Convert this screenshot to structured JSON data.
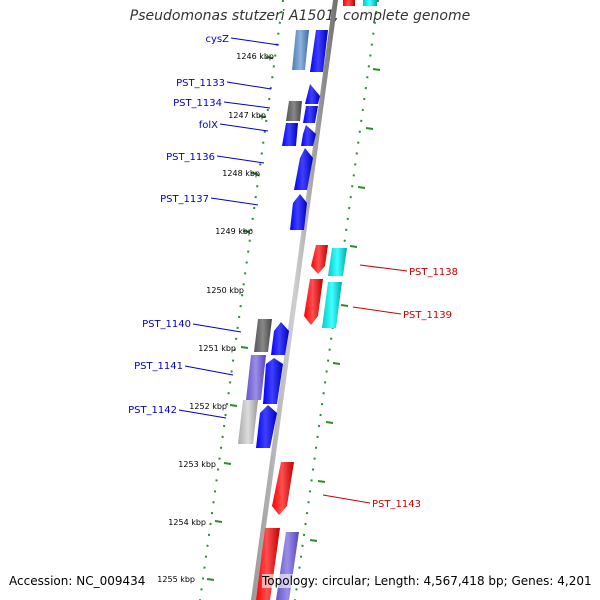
{
  "title": "Pseudomonas stutzeri A1501, complete genome",
  "footer": {
    "accession": "Accession: NC_009434",
    "info": "Topology: circular; Length: 4,567,418 bp; Genes: 4,201"
  },
  "colors": {
    "backbone": "#808080",
    "forward_strand": "#0000ff",
    "reverse_strand": "#ff0000",
    "rna_cyan": "#00e5e5",
    "tick_green": "#2e8b2e",
    "label_blue": "#0000cc",
    "label_red": "#cc0000"
  },
  "kbp_ticks": [
    "1246 kbp",
    "1247 kbp",
    "1248 kbp",
    "1249 kbp",
    "1250 kbp",
    "1251 kbp",
    "1252 kbp",
    "1253 kbp",
    "1254 kbp",
    "1255 kbp"
  ],
  "gene_labels_left": [
    "cysZ",
    "PST_1133",
    "PST_1134",
    "folX",
    "PST_1136",
    "PST_1137",
    "PST_1140",
    "PST_1141",
    "PST_1142"
  ],
  "gene_labels_right": [
    "PST_1138",
    "PST_1139",
    "PST_1143"
  ]
}
